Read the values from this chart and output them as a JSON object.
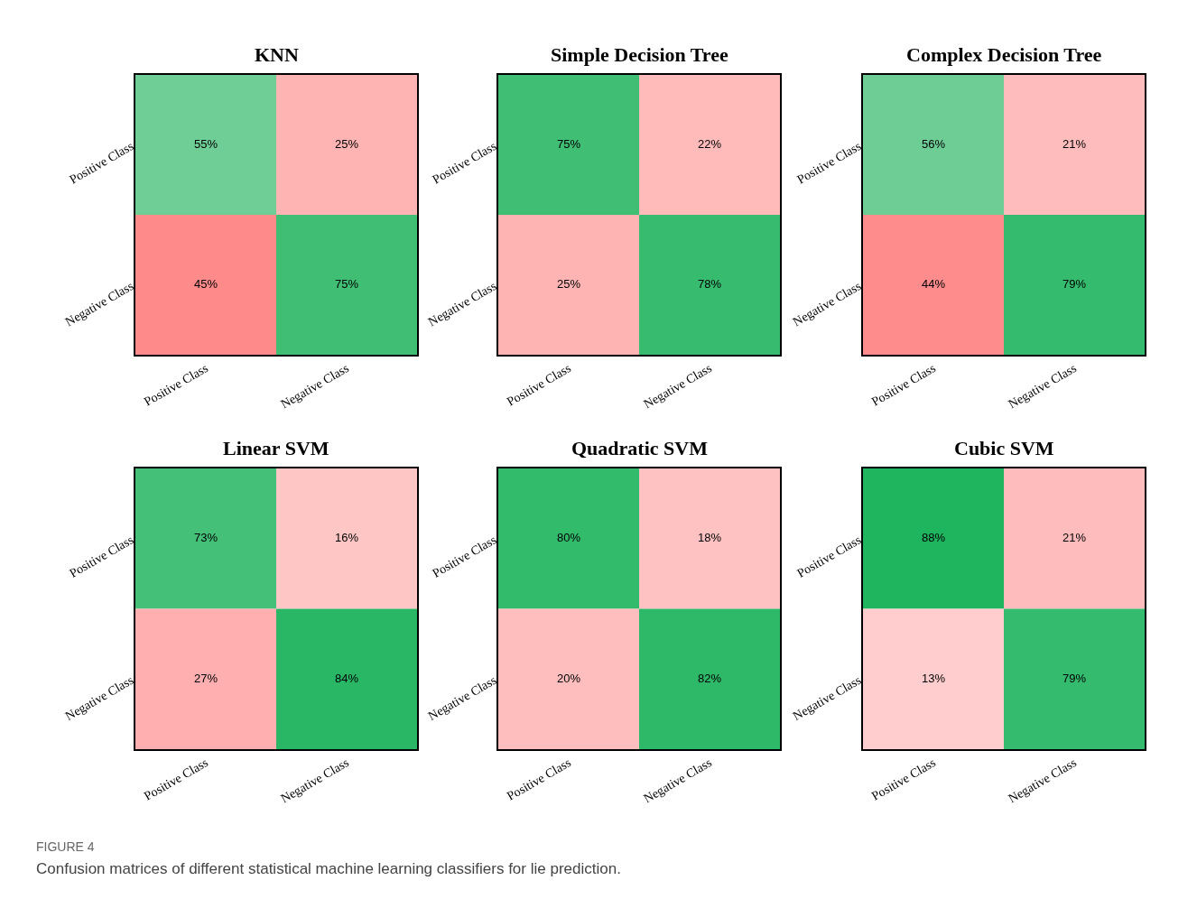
{
  "chart_data": [
    {
      "type": "heatmap",
      "title": "KNN",
      "categories": [
        "Positive Class",
        "Negative Class"
      ],
      "y_categories": [
        "Positive Class",
        "Negative Class"
      ],
      "cells": [
        [
          55,
          25
        ],
        [
          45,
          75
        ]
      ],
      "cell_labels": [
        [
          "55%",
          "25%"
        ],
        [
          "45%",
          "75%"
        ]
      ],
      "grid": false,
      "annotations": [
        "FIGURE 4",
        "Confusion matrices of different statistical machine learning classifiers for lie prediction."
      ]
    },
    {
      "type": "heatmap",
      "title": "Simple Decision Tree",
      "categories": [
        "Positive Class",
        "Negative Class"
      ],
      "y_categories": [
        "Positive Class",
        "Negative Class"
      ],
      "cells": [
        [
          75,
          22
        ],
        [
          25,
          78
        ]
      ],
      "cell_labels": [
        [
          "75%",
          "22%"
        ],
        [
          "25%",
          "78%"
        ]
      ],
      "grid": false
    },
    {
      "type": "heatmap",
      "title": "Complex Decision Tree",
      "categories": [
        "Positive Class",
        "Negative Class"
      ],
      "y_categories": [
        "Positive Class",
        "Negative Class"
      ],
      "cells": [
        [
          56,
          21
        ],
        [
          44,
          79
        ]
      ],
      "cell_labels": [
        [
          "56%",
          "21%"
        ],
        [
          "44%",
          "79%"
        ]
      ],
      "grid": false
    },
    {
      "type": "heatmap",
      "title": "Linear SVM",
      "categories": [
        "Positive Class",
        "Negative Class"
      ],
      "y_categories": [
        "Positive Class",
        "Negative Class"
      ],
      "cells": [
        [
          73,
          16
        ],
        [
          27,
          84
        ]
      ],
      "cell_labels": [
        [
          "73%",
          "16%"
        ],
        [
          "27%",
          "84%"
        ]
      ],
      "grid": false
    },
    {
      "type": "heatmap",
      "title": "Quadratic SVM",
      "categories": [
        "Positive Class",
        "Negative Class"
      ],
      "y_categories": [
        "Positive Class",
        "Negative Class"
      ],
      "cells": [
        [
          80,
          18
        ],
        [
          20,
          82
        ]
      ],
      "cell_labels": [
        [
          "80%",
          "18%"
        ],
        [
          "20%",
          "82%"
        ]
      ],
      "grid": false
    },
    {
      "type": "heatmap",
      "title": "Cubic SVM",
      "categories": [
        "Positive Class",
        "Negative Class"
      ],
      "y_categories": [
        "Positive Class",
        "Negative Class"
      ],
      "cells": [
        [
          88,
          21
        ],
        [
          13,
          79
        ]
      ],
      "cell_labels": [
        [
          "88%",
          "21%"
        ],
        [
          "13%",
          "79%"
        ]
      ],
      "grid": false
    }
  ]
}
